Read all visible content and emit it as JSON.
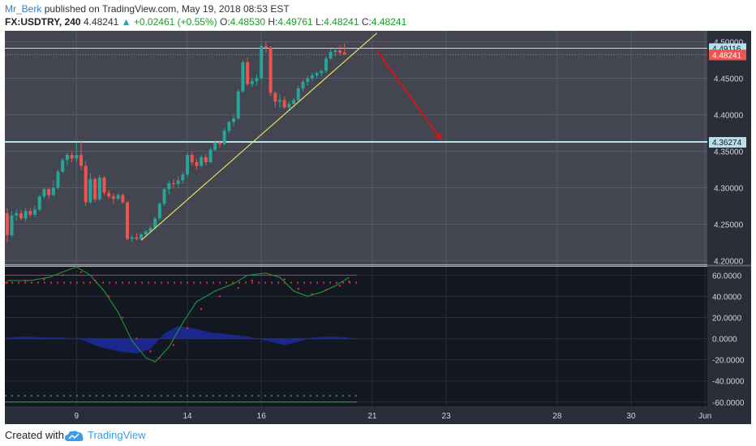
{
  "header": {
    "author": "Mr_Berk",
    "published_text": "published on TradingView.com, May 19, 2018 08:53 EST",
    "symbol": "FX:USDTRY, 240",
    "last": "4.48241",
    "change_arrow": "▲",
    "change": "+0.02461 (+0.55%)",
    "o_label": "O:",
    "o": "4.48530",
    "h_label": "H:",
    "h": "4.49761",
    "l_label": "L:",
    "l": "4.48241",
    "c_label": "C:",
    "c": "4.48241"
  },
  "footer": {
    "created_with": "Created with",
    "brand": "TradingView"
  },
  "colors": {
    "background": "#434651",
    "up": "#26a69a",
    "down": "#ef5350",
    "trendline": "#e8e05a",
    "arrow": "#d01616",
    "level": "#b8e0ea"
  },
  "chart_data": {
    "type": "candlestick",
    "symbol": "FX:USDTRY",
    "timeframe": "240",
    "ylim": [
      4.195,
      4.515
    ],
    "yticks": [
      "4.50000",
      "4.45000",
      "4.40000",
      "4.35000",
      "4.30000",
      "4.25000",
      "4.20000"
    ],
    "ytick_values": [
      4.5,
      4.45,
      4.4,
      4.35,
      4.3,
      4.25,
      4.2
    ],
    "xticks": [
      {
        "label": "9",
        "index": 15
      },
      {
        "label": "14",
        "index": 39
      },
      {
        "label": "16",
        "index": 55
      },
      {
        "label": "21",
        "index": 79
      },
      {
        "label": "23",
        "index": 95
      },
      {
        "label": "28",
        "index": 119
      },
      {
        "label": "30",
        "index": 135
      },
      {
        "label": "Jun",
        "index": 151
      }
    ],
    "x_total_bars": 152,
    "candles": [
      [
        4.265,
        4.272,
        4.225,
        4.235
      ],
      [
        4.235,
        4.268,
        4.232,
        4.262
      ],
      [
        4.262,
        4.27,
        4.255,
        4.265
      ],
      [
        4.265,
        4.27,
        4.255,
        4.258
      ],
      [
        4.258,
        4.272,
        4.254,
        4.268
      ],
      [
        4.268,
        4.272,
        4.26,
        4.263
      ],
      [
        4.263,
        4.275,
        4.26,
        4.27
      ],
      [
        4.27,
        4.29,
        4.268,
        4.288
      ],
      [
        4.288,
        4.3,
        4.285,
        4.298
      ],
      [
        4.298,
        4.3,
        4.285,
        4.29
      ],
      [
        4.29,
        4.31,
        4.288,
        4.3
      ],
      [
        4.3,
        4.325,
        4.298,
        4.322
      ],
      [
        4.322,
        4.34,
        4.32,
        4.338
      ],
      [
        4.338,
        4.348,
        4.33,
        4.345
      ],
      [
        4.345,
        4.35,
        4.335,
        4.34
      ],
      [
        4.34,
        4.362,
        4.335,
        4.345
      ],
      [
        4.345,
        4.365,
        4.325,
        4.33
      ],
      [
        4.33,
        4.336,
        4.275,
        4.28
      ],
      [
        4.28,
        4.32,
        4.278,
        4.312
      ],
      [
        4.312,
        4.314,
        4.28,
        4.284
      ],
      [
        4.284,
        4.318,
        4.282,
        4.314
      ],
      [
        4.314,
        4.316,
        4.29,
        4.293
      ],
      [
        4.293,
        4.297,
        4.285,
        4.288
      ],
      [
        4.288,
        4.292,
        4.278,
        4.285
      ],
      [
        4.285,
        4.292,
        4.282,
        4.29
      ],
      [
        4.29,
        4.292,
        4.278,
        4.28
      ],
      [
        4.28,
        4.282,
        4.228,
        4.23
      ],
      [
        4.23,
        4.236,
        4.226,
        4.232
      ],
      [
        4.232,
        4.238,
        4.228,
        4.23
      ],
      [
        4.23,
        4.238,
        4.228,
        4.236
      ],
      [
        4.236,
        4.242,
        4.232,
        4.24
      ],
      [
        4.24,
        4.248,
        4.238,
        4.245
      ],
      [
        4.245,
        4.26,
        4.243,
        4.258
      ],
      [
        4.258,
        4.28,
        4.256,
        4.278
      ],
      [
        4.278,
        4.3,
        4.275,
        4.298
      ],
      [
        4.298,
        4.31,
        4.29,
        4.306
      ],
      [
        4.306,
        4.312,
        4.3,
        4.305
      ],
      [
        4.305,
        4.315,
        4.3,
        4.31
      ],
      [
        4.31,
        4.322,
        4.305,
        4.318
      ],
      [
        4.318,
        4.348,
        4.315,
        4.345
      ],
      [
        4.345,
        4.35,
        4.33,
        4.335
      ],
      [
        4.335,
        4.34,
        4.325,
        4.33
      ],
      [
        4.33,
        4.345,
        4.328,
        4.342
      ],
      [
        4.342,
        4.346,
        4.33,
        4.335
      ],
      [
        4.335,
        4.355,
        4.333,
        4.352
      ],
      [
        4.352,
        4.365,
        4.35,
        4.362
      ],
      [
        4.362,
        4.365,
        4.355,
        4.36
      ],
      [
        4.36,
        4.382,
        4.358,
        4.378
      ],
      [
        4.378,
        4.392,
        4.375,
        4.39
      ],
      [
        4.39,
        4.4,
        4.385,
        4.395
      ],
      [
        4.395,
        4.435,
        4.393,
        4.432
      ],
      [
        4.432,
        4.475,
        4.43,
        4.472
      ],
      [
        4.472,
        4.478,
        4.44,
        4.442
      ],
      [
        4.442,
        4.45,
        4.438,
        4.446
      ],
      [
        4.446,
        4.455,
        4.44,
        4.45
      ],
      [
        4.45,
        4.497,
        4.448,
        4.494
      ],
      [
        4.494,
        4.5,
        4.485,
        4.492
      ],
      [
        4.492,
        4.494,
        4.425,
        4.43
      ],
      [
        4.43,
        4.432,
        4.41,
        4.418
      ],
      [
        4.418,
        4.428,
        4.41,
        4.42
      ],
      [
        4.42,
        4.425,
        4.408,
        4.41
      ],
      [
        4.41,
        4.418,
        4.405,
        4.415
      ],
      [
        4.415,
        4.423,
        4.41,
        4.42
      ],
      [
        4.42,
        4.44,
        4.418,
        4.436
      ],
      [
        4.436,
        4.448,
        4.432,
        4.445
      ],
      [
        4.445,
        4.454,
        4.44,
        4.45
      ],
      [
        4.45,
        4.457,
        4.446,
        4.454
      ],
      [
        4.454,
        4.46,
        4.45,
        4.457
      ],
      [
        4.457,
        4.462,
        4.453,
        4.46
      ],
      [
        4.46,
        4.48,
        4.457,
        4.477
      ],
      [
        4.477,
        4.49,
        4.475,
        4.486
      ],
      [
        4.486,
        4.492,
        4.48,
        4.488
      ],
      [
        4.488,
        4.496,
        4.482,
        4.485
      ],
      [
        4.4853,
        4.4976,
        4.4824,
        4.4824
      ]
    ],
    "price_labels": [
      {
        "value": "4.49116",
        "price": 4.49116,
        "role": "level"
      },
      {
        "value": "4.48241",
        "price": 4.48241,
        "role": "last"
      },
      {
        "value": "4.36274",
        "price": 4.36274,
        "role": "level"
      }
    ],
    "trendline": {
      "from": [
        29,
        4.228
      ],
      "to": [
        80,
        4.512
      ]
    },
    "arrow": {
      "from": [
        80,
        4.488
      ],
      "to": [
        94,
        4.365
      ]
    },
    "indicator": {
      "ylim": [
        -64,
        68
      ],
      "yticks": [
        "60.0000",
        "40.0000",
        "20.0000",
        "0.0000",
        "-20.0000",
        "-40.0000",
        "-60.0000"
      ],
      "ytick_values": [
        60,
        40,
        20,
        0,
        -20,
        -40,
        -60
      ],
      "upper_level": 60,
      "lower_level": -60,
      "dotted_upper": 53,
      "dotted_lower": -54,
      "fast_line": [
        {
          "i": 0,
          "v": 55
        },
        {
          "i": 5,
          "v": 55
        },
        {
          "i": 9,
          "v": 58
        },
        {
          "i": 12,
          "v": 63
        },
        {
          "i": 15,
          "v": 68
        },
        {
          "i": 18,
          "v": 60
        },
        {
          "i": 21,
          "v": 45
        },
        {
          "i": 24,
          "v": 25
        },
        {
          "i": 27,
          "v": -2
        },
        {
          "i": 30,
          "v": -18
        },
        {
          "i": 32,
          "v": -22
        },
        {
          "i": 35,
          "v": -8
        },
        {
          "i": 38,
          "v": 15
        },
        {
          "i": 41,
          "v": 35
        },
        {
          "i": 45,
          "v": 45
        },
        {
          "i": 49,
          "v": 52
        },
        {
          "i": 52,
          "v": 60
        },
        {
          "i": 56,
          "v": 62
        },
        {
          "i": 59,
          "v": 58
        },
        {
          "i": 62,
          "v": 45
        },
        {
          "i": 65,
          "v": 40
        },
        {
          "i": 68,
          "v": 44
        },
        {
          "i": 71,
          "v": 50
        },
        {
          "i": 74,
          "v": 58
        }
      ],
      "signal_dots": [
        {
          "i": 0,
          "v": 53
        },
        {
          "i": 4,
          "v": 55
        },
        {
          "i": 8,
          "v": 56
        },
        {
          "i": 12,
          "v": 60
        },
        {
          "i": 16,
          "v": 63
        },
        {
          "i": 19,
          "v": 55
        },
        {
          "i": 22,
          "v": 40
        },
        {
          "i": 25,
          "v": 20
        },
        {
          "i": 28,
          "v": 0
        },
        {
          "i": 31,
          "v": -12
        },
        {
          "i": 33,
          "v": -18
        },
        {
          "i": 36,
          "v": -6
        },
        {
          "i": 39,
          "v": 10
        },
        {
          "i": 42,
          "v": 28
        },
        {
          "i": 46,
          "v": 40
        },
        {
          "i": 50,
          "v": 48
        },
        {
          "i": 53,
          "v": 55
        },
        {
          "i": 57,
          "v": 60
        },
        {
          "i": 60,
          "v": 56
        },
        {
          "i": 63,
          "v": 47
        },
        {
          "i": 66,
          "v": 42
        },
        {
          "i": 69,
          "v": 46
        },
        {
          "i": 72,
          "v": 50
        },
        {
          "i": 74,
          "v": 54
        }
      ],
      "histogram": [
        {
          "i": 0,
          "v": 1
        },
        {
          "i": 4,
          "v": 2
        },
        {
          "i": 8,
          "v": 1
        },
        {
          "i": 12,
          "v": 1
        },
        {
          "i": 16,
          "v": -1
        },
        {
          "i": 20,
          "v": -8
        },
        {
          "i": 24,
          "v": -12
        },
        {
          "i": 28,
          "v": -14
        },
        {
          "i": 31,
          "v": -10
        },
        {
          "i": 34,
          "v": 5
        },
        {
          "i": 37,
          "v": 12
        },
        {
          "i": 40,
          "v": 10
        },
        {
          "i": 44,
          "v": 6
        },
        {
          "i": 48,
          "v": 4
        },
        {
          "i": 52,
          "v": 2
        },
        {
          "i": 56,
          "v": -2
        },
        {
          "i": 60,
          "v": -6
        },
        {
          "i": 63,
          "v": -3
        },
        {
          "i": 66,
          "v": 1
        },
        {
          "i": 70,
          "v": 2
        },
        {
          "i": 74,
          "v": 1
        }
      ]
    }
  }
}
